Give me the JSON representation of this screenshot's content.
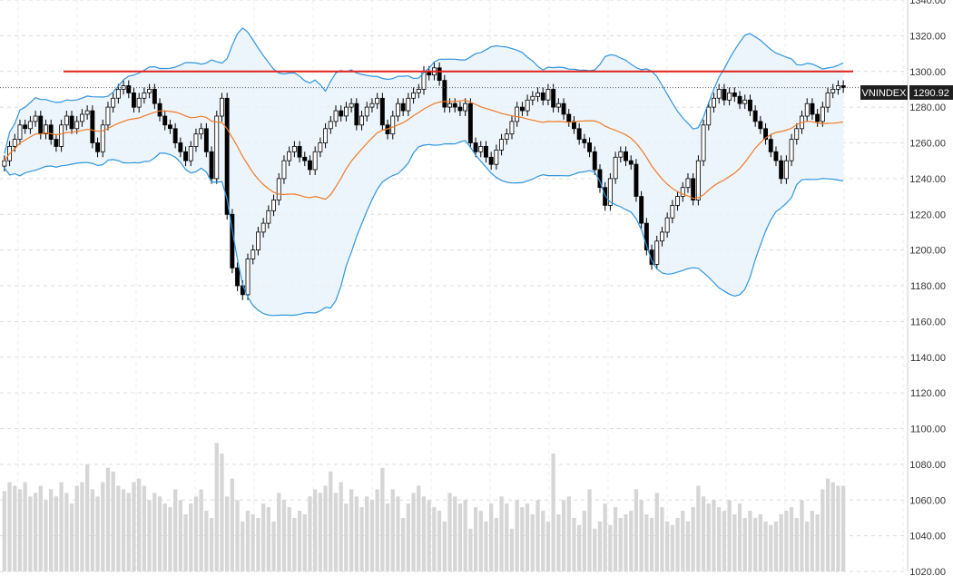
{
  "chart_data": {
    "type": "candlestick",
    "symbol": "VNINDEX",
    "last_value_label": "1290.92",
    "resistance_level": 1300,
    "ylim": [
      1020,
      1340
    ],
    "ticks": [
      "1340.00",
      "1320.00",
      "1300.00",
      "1280.00",
      "1260.00",
      "1240.00",
      "1220.00",
      "1200.00",
      "1180.00",
      "1160.00",
      "1140.00",
      "1120.00",
      "1100.00",
      "1080.00",
      "1060.00",
      "1040.00",
      "1020.00"
    ],
    "series": [
      {
        "name": "close",
        "values": [
          1250,
          1258,
          1262,
          1270,
          1268,
          1272,
          1275,
          1265,
          1270,
          1262,
          1258,
          1270,
          1275,
          1268,
          1272,
          1276,
          1278,
          1260,
          1255,
          1270,
          1280,
          1285,
          1290,
          1292,
          1288,
          1280,
          1285,
          1288,
          1290,
          1282,
          1275,
          1270,
          1268,
          1260,
          1255,
          1250,
          1258,
          1265,
          1268,
          1255,
          1240,
          1275,
          1285,
          1220,
          1190,
          1180,
          1175,
          1195,
          1200,
          1210,
          1215,
          1222,
          1228,
          1240,
          1250,
          1255,
          1258,
          1252,
          1250,
          1245,
          1255,
          1260,
          1268,
          1272,
          1278,
          1275,
          1280,
          1282,
          1270,
          1275,
          1280,
          1282,
          1285,
          1270,
          1265,
          1275,
          1282,
          1278,
          1285,
          1288,
          1290,
          1300,
          1298,
          1302,
          1295,
          1280,
          1282,
          1280,
          1278,
          1282,
          1260,
          1255,
          1258,
          1252,
          1248,
          1256,
          1262,
          1265,
          1272,
          1280,
          1278,
          1284,
          1286,
          1288,
          1284,
          1290,
          1280,
          1282,
          1276,
          1272,
          1268,
          1262,
          1260,
          1255,
          1245,
          1235,
          1225,
          1240,
          1252,
          1255,
          1250,
          1248,
          1230,
          1215,
          1200,
          1192,
          1205,
          1210,
          1218,
          1225,
          1230,
          1235,
          1240,
          1228,
          1250,
          1270,
          1280,
          1285,
          1290,
          1284,
          1288,
          1286,
          1282,
          1284,
          1278,
          1272,
          1268,
          1262,
          1255,
          1250,
          1240,
          1250,
          1262,
          1268,
          1275,
          1282,
          1276,
          1272,
          1280,
          1288,
          1290,
          1292,
          1290.92
        ]
      },
      {
        "name": "volume",
        "values": [
          1065,
          1070,
          1068,
          1066,
          1070,
          1062,
          1064,
          1068,
          1060,
          1066,
          1062,
          1070,
          1064,
          1058,
          1068,
          1070,
          1080,
          1066,
          1062,
          1070,
          1078,
          1076,
          1068,
          1066,
          1064,
          1070,
          1072,
          1068,
          1060,
          1064,
          1062,
          1058,
          1056,
          1066,
          1060,
          1052,
          1058,
          1062,
          1066,
          1054,
          1050,
          1092,
          1086,
          1062,
          1072,
          1060,
          1048,
          1054,
          1052,
          1050,
          1058,
          1056,
          1048,
          1064,
          1060,
          1056,
          1050,
          1054,
          1052,
          1062,
          1066,
          1064,
          1068,
          1076,
          1064,
          1070,
          1058,
          1066,
          1062,
          1056,
          1062,
          1060,
          1066,
          1078,
          1058,
          1066,
          1062,
          1050,
          1058,
          1064,
          1068,
          1062,
          1060,
          1056,
          1054,
          1048,
          1064,
          1062,
          1058,
          1060,
          1044,
          1056,
          1054,
          1048,
          1058,
          1050,
          1062,
          1058,
          1044,
          1060,
          1056,
          1058,
          1052,
          1060,
          1054,
          1048,
          1086,
          1052,
          1060,
          1062,
          1050,
          1046,
          1054,
          1066,
          1044,
          1048,
          1058,
          1046,
          1056,
          1050,
          1052,
          1054,
          1066,
          1060,
          1052,
          1050,
          1064,
          1056,
          1048,
          1046,
          1050,
          1054,
          1048,
          1056,
          1068,
          1062,
          1058,
          1060,
          1056,
          1054,
          1060,
          1052,
          1058,
          1050,
          1054,
          1050,
          1052,
          1048,
          1046,
          1048,
          1052,
          1054,
          1056,
          1050,
          1060,
          1048,
          1054,
          1052,
          1066,
          1072,
          1070,
          1068,
          1068
        ]
      }
    ],
    "grid": true
  }
}
